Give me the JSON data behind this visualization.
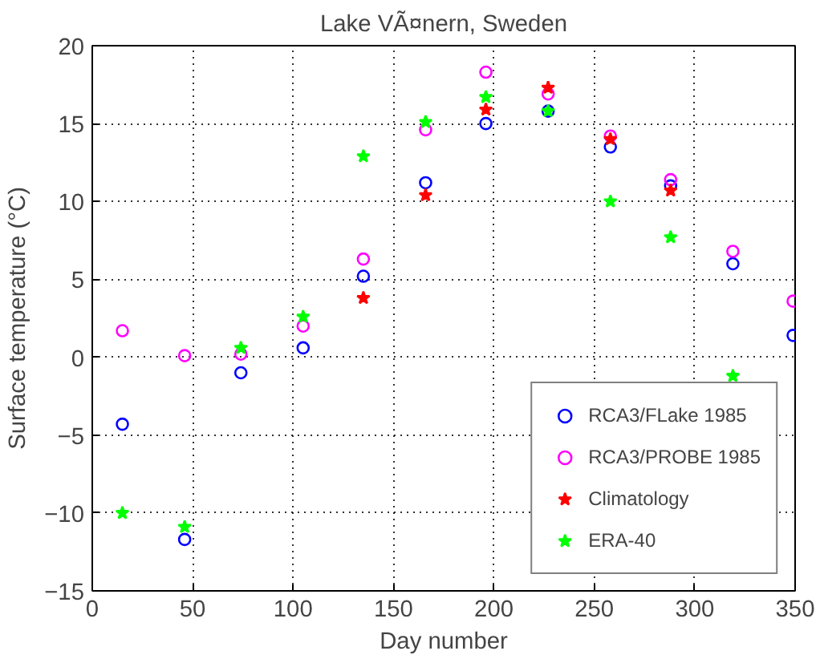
{
  "chart_data": {
    "type": "scatter",
    "title": "Lake VÃ¤nern, Sweden",
    "xlabel": "Day number",
    "ylabel": "Surface temperature (°C)",
    "x": [
      15,
      46,
      74,
      105,
      135,
      166,
      196,
      227,
      258,
      288,
      319,
      349
    ],
    "series": [
      {
        "name": "RCA3/FLake 1985",
        "color": "#0000ff",
        "marker": "circle",
        "values": [
          -4.3,
          -11.7,
          -1.0,
          0.6,
          5.2,
          11.2,
          15.0,
          15.8,
          13.5,
          11.0,
          6.0,
          1.4
        ]
      },
      {
        "name": "RCA3/PROBE 1985",
        "color": "#ff00ff",
        "marker": "circle",
        "values": [
          1.7,
          0.1,
          0.2,
          2.0,
          6.3,
          14.6,
          18.3,
          16.9,
          14.2,
          11.4,
          6.8,
          3.6
        ]
      },
      {
        "name": "Climatology",
        "color": "#ff0000",
        "marker": "star",
        "values": [
          null,
          null,
          null,
          null,
          3.8,
          10.4,
          15.9,
          17.3,
          14.0,
          10.7,
          null,
          null
        ]
      },
      {
        "name": "ERA-40",
        "color": "#00ff00",
        "marker": "star",
        "values": [
          -10.0,
          -10.9,
          0.6,
          2.6,
          12.9,
          15.1,
          16.7,
          15.8,
          10.0,
          7.7,
          -1.2,
          null
        ]
      }
    ],
    "xlim": [
      0,
      350
    ],
    "xticks": [
      0,
      50,
      100,
      150,
      200,
      250,
      300,
      350
    ],
    "ylim": [
      -15,
      20
    ],
    "yticks": [
      -15,
      -10,
      -5,
      0,
      5,
      10,
      15,
      20
    ],
    "grid": true,
    "legend": "bottom right"
  }
}
